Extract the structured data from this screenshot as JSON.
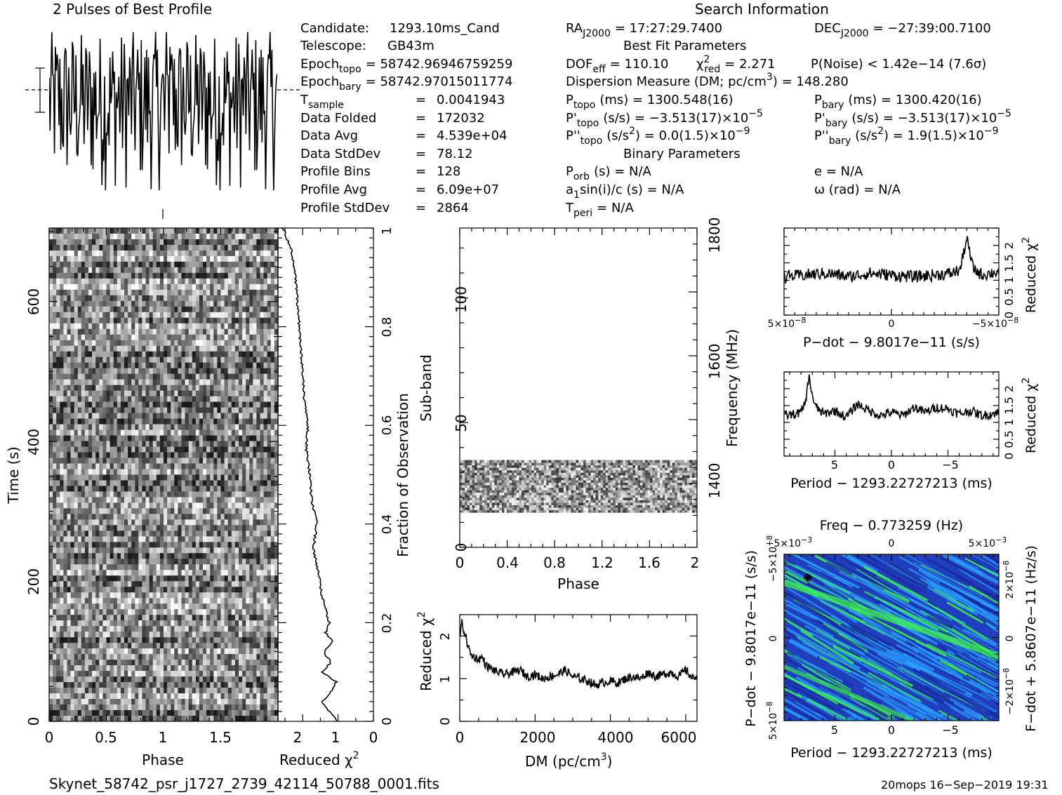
{
  "header": {
    "profile_title": "2 Pulses of Best Profile",
    "search_title": "Search Information"
  },
  "info": {
    "candidate": {
      "label": "Candidate:",
      "value": "1293.10ms_Cand"
    },
    "telescope": {
      "label": "Telescope:",
      "value": "GB43m"
    },
    "epoch_topo": {
      "label": "Epoch",
      "sub": "topo",
      "value": "= 58742.96946759259"
    },
    "epoch_bary": {
      "label": "Epoch",
      "sub": "bary",
      "value": "= 58742.97015011774"
    },
    "t_sample": {
      "label": "T",
      "sub": "sample",
      "value": "0.0041943"
    },
    "data_folded": {
      "label": "Data Folded",
      "value": "172032"
    },
    "data_avg": {
      "label": "Data Avg",
      "value": "4.539e+04"
    },
    "data_stddev": {
      "label": "Data StdDev",
      "value": "78.12"
    },
    "profile_bins": {
      "label": "Profile Bins",
      "value": "128"
    },
    "profile_avg": {
      "label": "Profile Avg",
      "value": "6.09e+07"
    },
    "profile_stddev": {
      "label": "Profile StdDev",
      "value": "2864"
    },
    "eq": "="
  },
  "search": {
    "ra": {
      "label": "RA",
      "sub": "J2000",
      "value": "= 17:27:29.7400"
    },
    "dec": {
      "label": "DEC",
      "sub": "J2000",
      "value": "= −27:39:00.7100"
    },
    "best_fit_title": "Best Fit Parameters",
    "dof": {
      "label": "DOF",
      "sub": "eff",
      "value": "= 110.10"
    },
    "chi2": {
      "label": "χ",
      "sup": "2",
      "sub": "red",
      "value": "= 2.271"
    },
    "pnoise": "P(Noise) < 1.42e−14   (7.6σ)",
    "dm": {
      "label": "Dispersion Measure (DM; pc/cm",
      "sup": "3",
      "value": ") = 148.280"
    },
    "p_topo": {
      "label": "P",
      "sub": "topo",
      "value": "(ms) =  1300.548(16)"
    },
    "p_bary": {
      "label": "P",
      "sub": "bary",
      "value": "(ms) =  1300.420(16)"
    },
    "pd_topo": {
      "label": "P'",
      "sub": "topo",
      "value": "(s/s) = −3.513(17)×10",
      "exp": "−5"
    },
    "pd_bary": {
      "label": "P'",
      "sub": "bary",
      "value": "(s/s) = −3.513(17)×10",
      "exp": "−5"
    },
    "pdd_topo": {
      "label": "P''",
      "sub": "topo",
      "value": "(s/s",
      "sup": "2",
      "rest": ") = 0.0(1.5)×10",
      "exp": "−9"
    },
    "pdd_bary": {
      "label": "P''",
      "sub": "bary",
      "value": "(s/s",
      "sup": "2",
      "rest": ") =  1.9(1.5)×10",
      "exp": "−9"
    },
    "binary_title": "Binary Parameters",
    "porb": {
      "label": "P",
      "sub": "orb",
      "value": "(s) = N/A"
    },
    "ecc": "e = N/A",
    "a1": {
      "label": "a",
      "sub": "1",
      "value": "sin(i)/c (s) = N/A"
    },
    "omega": "ω (rad) = N/A",
    "tperi": {
      "label": "T",
      "sub": "peri",
      "value": "= N/A"
    }
  },
  "footer": {
    "filename": "Skynet_58742_psr_j1727_2739_42114_50788_0001.fits",
    "stamp": "20mops 16−Sep−2019 19:31"
  },
  "colors": {
    "ink": "#000000",
    "heat_low": "#1a2a9a",
    "heat_mid": "#2aa0ff",
    "heat_high": "#40ff40"
  },
  "chart_data": [
    {
      "type": "line",
      "id": "pulse_profile",
      "title": "2 Pulses of Best Profile",
      "xlim": [
        0,
        2
      ],
      "note": "profile of 128 bins shown twice; no axis tick labels"
    },
    {
      "type": "heatmap",
      "id": "time_phase",
      "xlabel": "Phase",
      "ylabel": "Time (s)",
      "x_ticks": [
        "0",
        "0.5",
        "1",
        "1.5"
      ],
      "y_ticks": [
        "0",
        "200",
        "400",
        "600"
      ],
      "xlim": [
        0,
        2
      ],
      "ylim": [
        0,
        705
      ],
      "colors": "grayscale"
    },
    {
      "type": "line",
      "id": "time_chi2",
      "xlabel": "Reduced χ",
      "xlabel_sup": "2",
      "ylabel_right": "Fraction of Observation",
      "x_ticks": [
        "2",
        "1",
        "0"
      ],
      "y_ticks_right": [
        "0",
        "0.2",
        "0.4",
        "0.6",
        "0.8",
        "1"
      ],
      "xlim": [
        2.7,
        0
      ],
      "ylim": [
        0,
        1
      ],
      "y": [
        0,
        0.02,
        0.04,
        0.06,
        0.08,
        0.1,
        0.12,
        0.14,
        0.16,
        0.18,
        0.2,
        0.25,
        0.3,
        0.35,
        0.4,
        0.45,
        0.5,
        0.55,
        0.6,
        0.65,
        0.7,
        0.75,
        0.8,
        0.85,
        0.9,
        0.95,
        1.0
      ],
      "x": [
        1.0,
        1.25,
        1.45,
        1.2,
        1.05,
        1.45,
        1.2,
        1.4,
        1.15,
        1.35,
        1.25,
        1.45,
        1.55,
        1.7,
        1.6,
        1.75,
        1.8,
        1.9,
        1.85,
        1.95,
        2.0,
        2.05,
        2.1,
        2.15,
        2.2,
        2.3,
        2.55
      ]
    },
    {
      "type": "heatmap",
      "id": "subband_phase",
      "xlabel": "Phase",
      "ylabel": "Sub-band",
      "ylabel_right": "Frequency (MHz)",
      "x_ticks": [
        "0",
        "0.4",
        "0.8",
        "1.2",
        "1.6",
        "2"
      ],
      "y_ticks": [
        "0",
        "50",
        "100"
      ],
      "y_ticks_right": [
        "1400",
        "1600",
        "1800"
      ],
      "xlim": [
        0,
        2
      ],
      "ylim": [
        0,
        128
      ],
      "filled_subbands": [
        14,
        35
      ],
      "colors": "grayscale"
    },
    {
      "type": "line",
      "id": "dm_chi2",
      "xlabel": "DM (pc/cm",
      "xlabel_sup": "3",
      "xlabel_end": ")",
      "ylabel": "Reduced χ",
      "ylabel_sup": "2",
      "x_ticks": [
        "0",
        "2000",
        "4000",
        "6000"
      ],
      "y_ticks": [
        "0",
        "1",
        "2"
      ],
      "xlim": [
        0,
        6300
      ],
      "ylim": [
        0,
        2.5
      ],
      "x": [
        0,
        60,
        120,
        180,
        240,
        300,
        400,
        500,
        600,
        700,
        800,
        1000,
        1200,
        1400,
        1600,
        1800,
        2000,
        2200,
        2400,
        2600,
        2800,
        3000,
        3200,
        3400,
        3600,
        3800,
        4000,
        4200,
        4400,
        4600,
        4800,
        5000,
        5200,
        5400,
        5600,
        5800,
        6000,
        6200,
        6300
      ],
      "y": [
        2.0,
        2.3,
        2.1,
        1.9,
        1.7,
        1.55,
        1.5,
        1.45,
        1.5,
        1.3,
        1.25,
        1.15,
        1.1,
        1.15,
        1.2,
        1.05,
        1.1,
        1.0,
        1.05,
        1.1,
        1.2,
        1.05,
        1.0,
        0.95,
        0.85,
        0.9,
        0.95,
        0.9,
        1.0,
        1.05,
        1.0,
        1.15,
        1.05,
        1.1,
        1.15,
        1.05,
        1.2,
        1.0,
        1.1
      ]
    },
    {
      "type": "line",
      "id": "pdot_chi2",
      "xlabel": "P−dot − 9.8017e−11 (s/s)",
      "ylabel_right": "Reduced χ",
      "ylabel_right_sup": "2",
      "x_ticks": [
        "5×10",
        "0",
        "−5×10"
      ],
      "x_tick_exp": "−8",
      "y_ticks_right": [
        "0",
        "0.5",
        "1",
        "1.5",
        "2"
      ],
      "xlim": [
        5e-08,
        -5e-08
      ],
      "ylim": [
        0,
        2.5
      ],
      "x": [
        5e-08,
        4e-08,
        3e-08,
        2e-08,
        1e-08,
        0,
        -1e-08,
        -2e-08,
        -2.8e-08,
        -3.2e-08,
        -3.5e-08,
        -3.8e-08,
        -4.2e-08,
        -5e-08
      ],
      "y": [
        1.1,
        1.15,
        1.2,
        1.1,
        1.2,
        1.15,
        1.1,
        1.15,
        1.2,
        1.3,
        2.2,
        1.35,
        1.15,
        1.25
      ]
    },
    {
      "type": "line",
      "id": "period_chi2",
      "xlabel": "Period − 1293.22727213 (ms)",
      "ylabel_right": "Reduced χ",
      "ylabel_right_sup": "2",
      "x_ticks": [
        "5",
        "0",
        "−5"
      ],
      "y_ticks_right": [
        "0",
        "0.5",
        "1",
        "1.5",
        "2"
      ],
      "xlim": [
        9.5,
        -9.5
      ],
      "ylim": [
        0,
        2.5
      ],
      "x": [
        9.5,
        8.5,
        8.0,
        7.6,
        7.3,
        6.8,
        6.0,
        5.0,
        4.0,
        3.0,
        2.0,
        1.0,
        0,
        -1.0,
        -2.0,
        -3.0,
        -4.0,
        -5.0,
        -6.0,
        -7.0,
        -8.0,
        -9.5
      ],
      "y": [
        1.2,
        1.25,
        1.3,
        1.6,
        2.35,
        1.5,
        1.25,
        1.35,
        1.15,
        1.55,
        1.35,
        1.2,
        1.3,
        1.2,
        1.45,
        1.3,
        1.45,
        1.4,
        1.25,
        1.35,
        1.2,
        1.3
      ]
    },
    {
      "type": "heatmap",
      "id": "p_pdot",
      "title": "Freq − 0.773259 (Hz)",
      "xlabel": "Period − 1293.22727213 (ms)",
      "ylabel": "P−dot − 9.8017e−11 (s/s)",
      "ylabel_right": "F−dot + 5.8607e−11 (Hz/s)",
      "x_ticks": [
        "5",
        "0",
        "−5"
      ],
      "x_ticks_top": [
        "−5×10",
        "0",
        "5×10"
      ],
      "x_ticks_top_exp": "−3",
      "y_ticks": [
        "5×10",
        "0",
        "−5×10"
      ],
      "y_ticks_exp": "−8",
      "y_ticks_right": [
        "−2×10",
        "0",
        "2×10"
      ],
      "y_ticks_right_exp": "−8",
      "best_marker": {
        "period": 7.4,
        "pdot": -3.6e-08
      },
      "colors": "blue-cyan-green"
    }
  ]
}
